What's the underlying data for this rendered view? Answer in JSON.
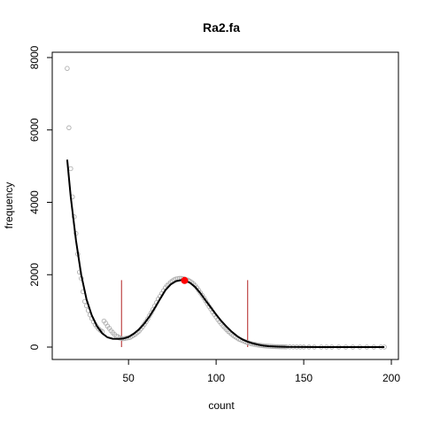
{
  "chart_data": {
    "type": "scatter",
    "title": "Ra2.fa",
    "xlabel": "count",
    "ylabel": "frequency",
    "xlim": [
      10,
      200
    ],
    "ylim": [
      0,
      8000
    ],
    "xticks": [
      "50",
      "100",
      "150",
      "200"
    ],
    "yticks": [
      "0",
      "2000",
      "4000",
      "6000",
      "8000"
    ],
    "grid": false,
    "legend": "none",
    "colors": {
      "points": "#b0b0b0",
      "fit": "#000000",
      "peak": "#ff0000",
      "markers": "#b22222"
    },
    "points": [
      [
        15,
        7700
      ],
      [
        16,
        6060
      ],
      [
        17,
        4930
      ],
      [
        18,
        4150
      ],
      [
        19,
        3600
      ],
      [
        20,
        3140
      ],
      [
        21,
        2570
      ],
      [
        22,
        2070
      ],
      [
        23,
        1900
      ],
      [
        24,
        1530
      ],
      [
        25,
        1260
      ],
      [
        26,
        1140
      ],
      [
        27,
        1010
      ],
      [
        28,
        890
      ],
      [
        29,
        790
      ],
      [
        30,
        700
      ],
      [
        31,
        620
      ],
      [
        32,
        560
      ],
      [
        33,
        500
      ],
      [
        34,
        460
      ],
      [
        35,
        430
      ],
      [
        36,
        720
      ],
      [
        37,
        660
      ],
      [
        38,
        580
      ],
      [
        39,
        520
      ],
      [
        40,
        450
      ],
      [
        41,
        400
      ],
      [
        42,
        350
      ],
      [
        43,
        300
      ],
      [
        44,
        290
      ],
      [
        45,
        250
      ],
      [
        46,
        240
      ],
      [
        47,
        230
      ],
      [
        48,
        240
      ],
      [
        49,
        250
      ],
      [
        50,
        260
      ],
      [
        51,
        270
      ],
      [
        52,
        300
      ],
      [
        53,
        330
      ],
      [
        54,
        360
      ],
      [
        55,
        400
      ],
      [
        56,
        440
      ],
      [
        57,
        500
      ],
      [
        58,
        560
      ],
      [
        59,
        630
      ],
      [
        60,
        700
      ],
      [
        61,
        780
      ],
      [
        62,
        870
      ],
      [
        63,
        950
      ],
      [
        64,
        1040
      ],
      [
        65,
        1140
      ],
      [
        66,
        1230
      ],
      [
        67,
        1330
      ],
      [
        68,
        1400
      ],
      [
        69,
        1480
      ],
      [
        70,
        1560
      ],
      [
        71,
        1640
      ],
      [
        72,
        1700
      ],
      [
        73,
        1740
      ],
      [
        74,
        1790
      ],
      [
        75,
        1830
      ],
      [
        76,
        1860
      ],
      [
        77,
        1880
      ],
      [
        78,
        1890
      ],
      [
        79,
        1900
      ],
      [
        80,
        1900
      ],
      [
        81,
        1890
      ],
      [
        82,
        1880
      ],
      [
        83,
        1860
      ],
      [
        84,
        1850
      ],
      [
        85,
        1820
      ],
      [
        86,
        1790
      ],
      [
        87,
        1750
      ],
      [
        88,
        1700
      ],
      [
        89,
        1640
      ],
      [
        90,
        1570
      ],
      [
        91,
        1500
      ],
      [
        92,
        1430
      ],
      [
        93,
        1360
      ],
      [
        94,
        1280
      ],
      [
        95,
        1200
      ],
      [
        96,
        1120
      ],
      [
        97,
        1050
      ],
      [
        98,
        970
      ],
      [
        99,
        900
      ],
      [
        100,
        830
      ],
      [
        101,
        760
      ],
      [
        102,
        700
      ],
      [
        103,
        640
      ],
      [
        104,
        580
      ],
      [
        105,
        530
      ],
      [
        106,
        480
      ],
      [
        107,
        430
      ],
      [
        108,
        390
      ],
      [
        109,
        350
      ],
      [
        110,
        310
      ],
      [
        111,
        280
      ],
      [
        112,
        250
      ],
      [
        113,
        220
      ],
      [
        114,
        200
      ],
      [
        115,
        180
      ],
      [
        116,
        160
      ],
      [
        117,
        140
      ],
      [
        118,
        125
      ],
      [
        119,
        110
      ],
      [
        120,
        95
      ],
      [
        121,
        85
      ],
      [
        122,
        75
      ],
      [
        123,
        65
      ],
      [
        124,
        56
      ],
      [
        125,
        48
      ],
      [
        126,
        42
      ],
      [
        127,
        36
      ],
      [
        128,
        31
      ],
      [
        129,
        27
      ],
      [
        130,
        23
      ],
      [
        131,
        20
      ],
      [
        132,
        17
      ],
      [
        133,
        15
      ],
      [
        134,
        13
      ],
      [
        135,
        11
      ],
      [
        136,
        10
      ],
      [
        137,
        9
      ],
      [
        138,
        8
      ],
      [
        139,
        7
      ],
      [
        140,
        6
      ],
      [
        142,
        5
      ],
      [
        144,
        4
      ],
      [
        146,
        3
      ],
      [
        148,
        3
      ],
      [
        150,
        2
      ],
      [
        153,
        2
      ],
      [
        156,
        1
      ],
      [
        160,
        1
      ],
      [
        163,
        1
      ],
      [
        166,
        1
      ],
      [
        170,
        1
      ],
      [
        174,
        1
      ],
      [
        178,
        1
      ],
      [
        182,
        1
      ],
      [
        186,
        1
      ],
      [
        190,
        1
      ],
      [
        194,
        1
      ],
      [
        196,
        1
      ]
    ],
    "fit_line": [
      [
        15,
        5180
      ],
      [
        17,
        4150
      ],
      [
        20,
        2950
      ],
      [
        23,
        2000
      ],
      [
        26,
        1320
      ],
      [
        29,
        880
      ],
      [
        32,
        580
      ],
      [
        35,
        380
      ],
      [
        38,
        270
      ],
      [
        41,
        230
      ],
      [
        44,
        225
      ],
      [
        47,
        235
      ],
      [
        50,
        280
      ],
      [
        53,
        370
      ],
      [
        56,
        490
      ],
      [
        59,
        650
      ],
      [
        62,
        850
      ],
      [
        65,
        1080
      ],
      [
        68,
        1330
      ],
      [
        71,
        1570
      ],
      [
        74,
        1730
      ],
      [
        77,
        1820
      ],
      [
        80,
        1850
      ],
      [
        82,
        1840
      ],
      [
        85,
        1780
      ],
      [
        88,
        1660
      ],
      [
        91,
        1490
      ],
      [
        94,
        1290
      ],
      [
        97,
        1090
      ],
      [
        100,
        900
      ],
      [
        103,
        720
      ],
      [
        106,
        560
      ],
      [
        109,
        420
      ],
      [
        112,
        300
      ],
      [
        115,
        210
      ],
      [
        118,
        150
      ],
      [
        121,
        100
      ],
      [
        124,
        65
      ],
      [
        127,
        40
      ],
      [
        130,
        25
      ],
      [
        135,
        12
      ],
      [
        140,
        6
      ],
      [
        150,
        2
      ],
      [
        160,
        1
      ],
      [
        175,
        1
      ],
      [
        196,
        0
      ]
    ],
    "peak": [
      82,
      1840
    ],
    "vertical_markers": [
      {
        "x": 46,
        "ymax": 1850
      },
      {
        "x": 118,
        "ymax": 1850
      }
    ]
  }
}
